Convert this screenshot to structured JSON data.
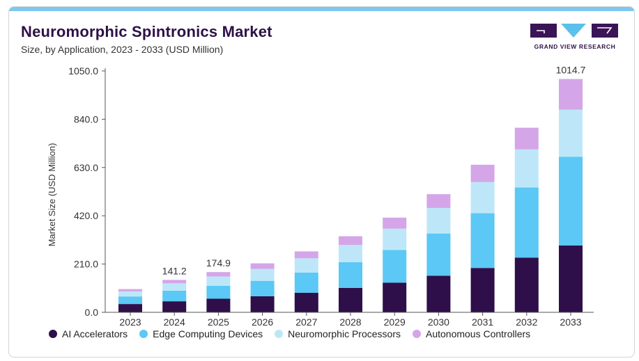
{
  "header": {
    "title": "Neuromorphic Spintronics Market",
    "subtitle": "Size, by Application, 2023 - 2033 (USD Million)"
  },
  "logo": {
    "text": "GRAND VIEW RESEARCH",
    "colors": [
      "#3a1457",
      "#5bc0eb",
      "#3a1457"
    ]
  },
  "colors": {
    "top_bar": "#7cc8ef",
    "title": "#2d1146"
  },
  "chart_data": {
    "type": "bar",
    "stacked": true,
    "title": "Neuromorphic Spintronics Market",
    "subtitle": "Size, by Application, 2023 - 2033 (USD Million)",
    "xlabel": "",
    "ylabel": "Market Size (USD Million)",
    "ylim": [
      0,
      1050
    ],
    "yticks": [
      "0.0",
      "210.0",
      "420.0",
      "630.0",
      "840.0",
      "1050.0"
    ],
    "ytick_values": [
      0,
      210,
      420,
      630,
      840,
      1050
    ],
    "grid": false,
    "legend_position": "bottom",
    "categories": [
      "2023",
      "2024",
      "2025",
      "2026",
      "2027",
      "2028",
      "2029",
      "2030",
      "2031",
      "2032",
      "2033"
    ],
    "series": [
      {
        "name": "AI Accelerators",
        "color": "#2e0f4a",
        "values": [
          36,
          48,
          59,
          70,
          85,
          106,
          129,
          159,
          193,
          238,
          291
        ]
      },
      {
        "name": "Edge Computing Devices",
        "color": "#5bc8f5",
        "values": [
          33,
          46,
          56,
          67,
          88,
          112,
          142,
          184,
          238,
          305,
          386
        ]
      },
      {
        "name": "Neuromorphic Processors",
        "color": "#bde7f8",
        "values": [
          22,
          32,
          41,
          52,
          62,
          75,
          93,
          111,
          136,
          166,
          205
        ]
      },
      {
        "name": "Autonomous Controllers",
        "color": "#d4a6e8",
        "values": [
          10,
          15,
          19,
          24,
          30,
          38,
          48,
          60,
          75,
          94,
          133
        ]
      }
    ],
    "totals": [
      101,
      141.2,
      174.9,
      213,
      265,
      331,
      412,
      514,
      642,
      803,
      1014.7
    ],
    "data_labels": [
      {
        "index": 1,
        "text": "141.2"
      },
      {
        "index": 2,
        "text": "174.9"
      },
      {
        "index": 10,
        "text": "1014.7"
      }
    ]
  }
}
